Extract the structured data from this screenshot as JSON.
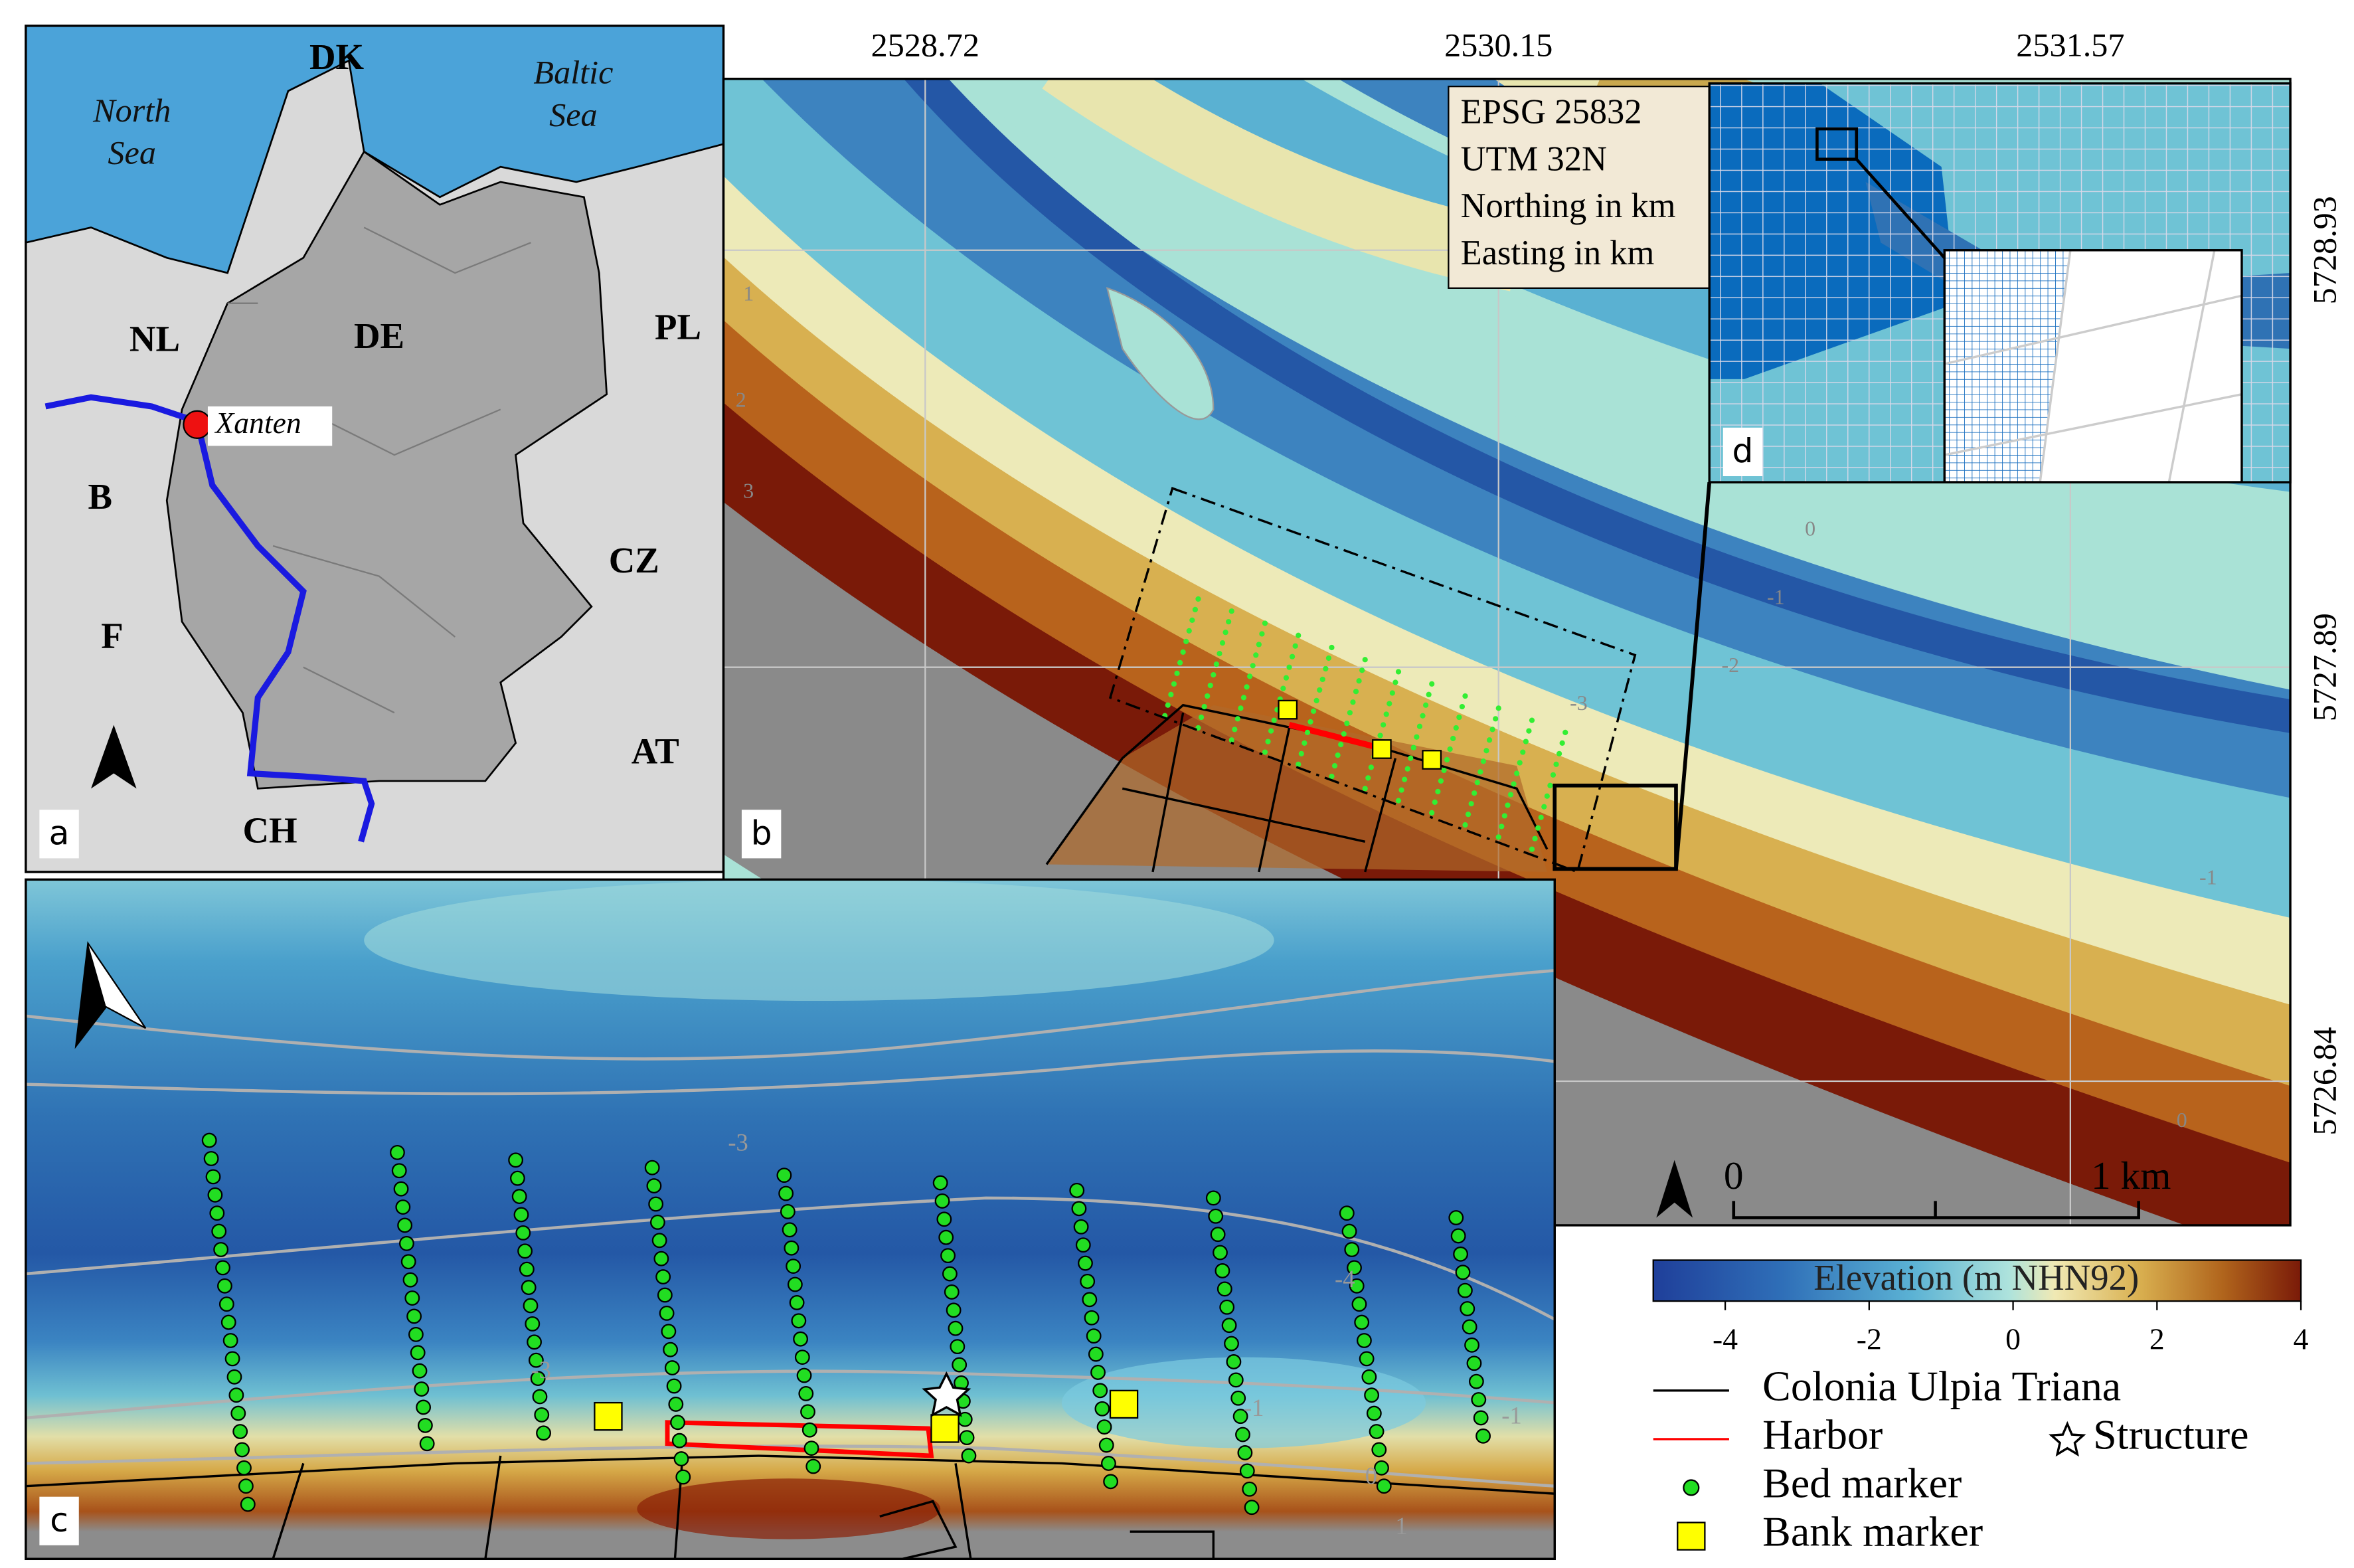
{
  "panel_a": {
    "label": "a",
    "seas": [
      [
        "North",
        "Sea"
      ],
      [
        "Baltic",
        "Sea"
      ]
    ],
    "countries": [
      "DK",
      "NL",
      "DE",
      "PL",
      "B",
      "CZ",
      "F",
      "AT",
      "CH"
    ],
    "city": "Xanten"
  },
  "panel_b": {
    "label": "b",
    "easting": [
      2528.72,
      2530.15,
      2531.57
    ],
    "northing": [
      5728.93,
      5727.89,
      5726.84
    ],
    "info_box": [
      "EPSG 25832",
      "UTM 32N",
      "Northing in km",
      "Easting in km"
    ],
    "scale_bar": [
      "0",
      "1 km"
    ],
    "contour_labels": [
      "0",
      "-1",
      "-2",
      "-3",
      "1",
      "2",
      "3",
      "-1",
      "0"
    ]
  },
  "panel_c": {
    "label": "c",
    "contour_labels": [
      "-3",
      "-4",
      "-1",
      "0",
      "-1",
      "1",
      "-3"
    ]
  },
  "panel_d": {
    "label": "d"
  },
  "colorbar": {
    "title": "Elevation (m NHN92)",
    "lim": [
      -5,
      4
    ],
    "ticks": [
      -4,
      -2,
      0,
      2,
      4
    ]
  },
  "legend": [
    "Colonia Ulpia Triana",
    "Harbor",
    "Structure",
    "Bed marker",
    "Bank marker"
  ]
}
